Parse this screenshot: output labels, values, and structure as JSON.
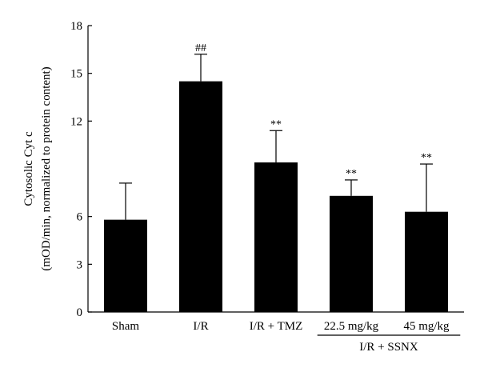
{
  "chart_data": {
    "type": "bar",
    "categories": [
      "Sham",
      "I/R",
      "I/R + TMZ",
      "22.5 mg/kg",
      "45 mg/kg"
    ],
    "values": [
      5.8,
      14.5,
      9.4,
      7.3,
      6.3
    ],
    "errors": [
      2.3,
      1.7,
      2.0,
      1.0,
      3.0
    ],
    "significance": [
      "",
      "##",
      "**",
      "**",
      "**"
    ],
    "ylabel_line1": "Cytosolic Cyt c",
    "ylabel_line2": "(mOD/min, normalized to protein content)",
    "ylim": [
      0,
      18
    ],
    "yticks": [
      0,
      3,
      6,
      12,
      15,
      18
    ],
    "group_label": "I/R + SSNX",
    "bar_color": "#000000",
    "grid": false
  }
}
